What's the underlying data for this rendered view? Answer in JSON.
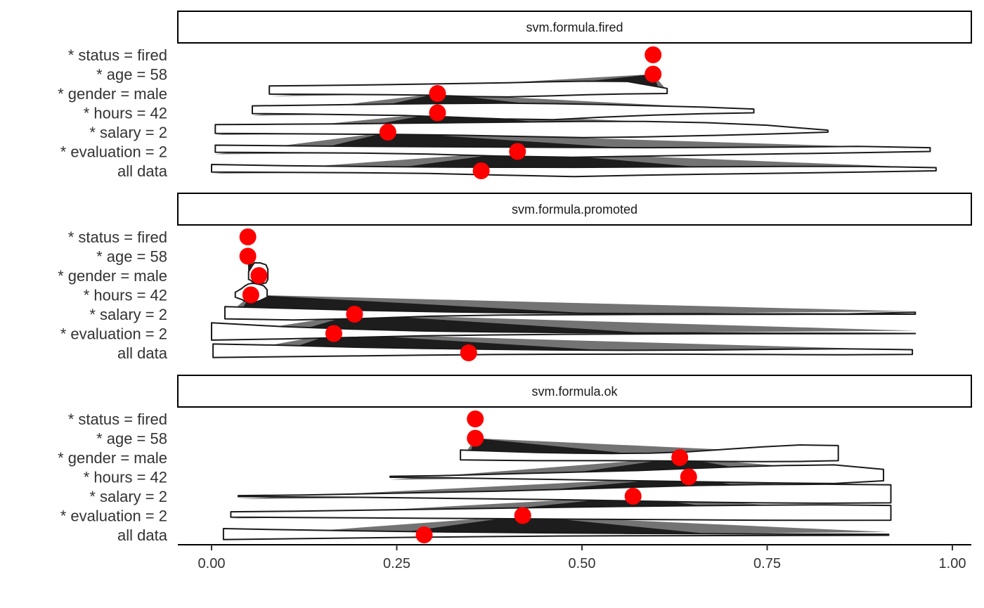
{
  "chart_data": {
    "type": "violin",
    "x_axis": {
      "range": [
        -0.045,
        1.03
      ],
      "ticks": [
        0.0,
        0.25,
        0.5,
        0.75,
        1.0
      ],
      "tick_labels": [
        "0.00",
        "0.25",
        "0.50",
        "0.75",
        "1.00"
      ],
      "label": ""
    },
    "rows": [
      "* status = fired",
      "* age = 58",
      "* gender = male",
      "* hours = 42",
      "* salary = 2",
      "* evaluation = 2",
      "all data"
    ],
    "point_color": "#ff0000",
    "panels": [
      {
        "title": "svm.formula.fired",
        "points": [
          0.596,
          0.596,
          0.305,
          0.305,
          0.238,
          0.413,
          0.364
        ],
        "violins": [
          {
            "row": "* gender = male",
            "min": 0.078,
            "max": 0.615,
            "top_shape": [
              0.6,
              0.63,
              0.66,
              0.7,
              0.75,
              0.8,
              0.85,
              0.92,
              0.97,
              0.95,
              0.4
            ],
            "bottom_shape": [
              0.08,
              0.1,
              0.13,
              0.15,
              0.22,
              0.38,
              0.45,
              0.32,
              0.15,
              0.05,
              0.0
            ]
          },
          {
            "row": "* hours = 42",
            "min": 0.055,
            "max": 0.732,
            "top_shape": [
              0.55,
              0.6,
              0.65,
              0.7,
              0.74,
              0.76,
              0.72,
              0.65,
              0.55,
              0.45,
              0.3
            ],
            "bottom_shape": [
              0.1,
              0.15,
              0.25,
              0.35,
              0.55,
              0.8,
              0.88,
              0.55,
              0.3,
              0.12,
              0.0
            ]
          },
          {
            "row": "* salary = 2",
            "min": 0.005,
            "max": 0.832,
            "top_shape": [
              0.6,
              0.62,
              0.65,
              0.7,
              0.75,
              0.8,
              0.85,
              0.85,
              0.75,
              0.55,
              0.15
            ],
            "bottom_shape": [
              0.15,
              0.2,
              0.25,
              0.3,
              0.4,
              0.55,
              0.7,
              0.62,
              0.45,
              0.25,
              0.0
            ]
          },
          {
            "row": "* evaluation = 2",
            "min": 0.005,
            "max": 0.97,
            "top_shape": [
              0.5,
              0.45,
              0.4,
              0.38,
              0.35,
              0.32,
              0.3,
              0.32,
              0.35,
              0.4,
              0.3
            ],
            "bottom_shape": [
              0.1,
              0.15,
              0.2,
              0.35,
              0.6,
              0.75,
              0.6,
              0.45,
              0.3,
              0.15,
              0.0
            ]
          },
          {
            "row": "all data",
            "min": 0.0,
            "max": 0.978,
            "top_shape": [
              0.5,
              0.4,
              0.35,
              0.3,
              0.28,
              0.27,
              0.3,
              0.32,
              0.35,
              0.35,
              0.25
            ],
            "bottom_shape": [
              0.15,
              0.2,
              0.25,
              0.35,
              0.55,
              0.75,
              0.55,
              0.42,
              0.3,
              0.15,
              0.0
            ]
          }
        ]
      },
      {
        "title": "svm.formula.promoted",
        "points": [
          0.049,
          0.049,
          0.064,
          0.053,
          0.193,
          0.165,
          0.347
        ],
        "violins": [
          {
            "row": "* gender = male",
            "min": 0.05,
            "max": 0.076,
            "top_shape": [
              0.3,
              0.55,
              0.8,
              1.0,
              1.0,
              1.0,
              1.0,
              0.95,
              0.9,
              0.85,
              0.5
            ],
            "bottom_shape": [
              0.5,
              0.6,
              0.8,
              1.0,
              1.0,
              1.0,
              1.0,
              1.0,
              1.0,
              0.95,
              0.5
            ]
          },
          {
            "row": "* hours = 42",
            "min": 0.032,
            "max": 0.075,
            "top_shape": [
              0.2,
              0.35,
              0.5,
              0.7,
              0.85,
              0.9,
              0.9,
              0.85,
              0.8,
              0.7,
              0.4
            ],
            "bottom_shape": [
              0.3,
              0.45,
              0.6,
              0.8,
              0.95,
              1.0,
              0.95,
              0.85,
              0.7,
              0.5,
              0.3
            ]
          },
          {
            "row": "* salary = 2",
            "min": 0.018,
            "max": 0.95,
            "top_shape": [
              0.6,
              0.45,
              0.3,
              0.2,
              0.12,
              0.08,
              0.05,
              0.04,
              0.03,
              0.02,
              0.15
            ],
            "bottom_shape": [
              0.6,
              0.75,
              0.55,
              0.25,
              0.12,
              0.06,
              0.04,
              0.02,
              0.02,
              0.01,
              0.0
            ]
          },
          {
            "row": "* evaluation = 2",
            "min": 0.0,
            "max": 0.95,
            "top_shape": [
              0.85,
              0.55,
              0.35,
              0.2,
              0.12,
              0.08,
              0.05,
              0.04,
              0.03,
              0.02,
              0.0
            ],
            "bottom_shape": [
              0.85,
              0.7,
              0.5,
              0.3,
              0.18,
              0.1,
              0.06,
              0.04,
              0.03,
              0.02,
              0.0
            ]
          },
          {
            "row": "all data",
            "min": 0.002,
            "max": 0.946,
            "top_shape": [
              0.7,
              0.6,
              0.45,
              0.35,
              0.28,
              0.22,
              0.2,
              0.22,
              0.28,
              0.32,
              0.25
            ],
            "bottom_shape": [
              0.6,
              0.5,
              0.4,
              0.3,
              0.22,
              0.18,
              0.16,
              0.18,
              0.22,
              0.25,
              0.2
            ]
          }
        ]
      },
      {
        "title": "svm.formula.ok",
        "points": [
          0.356,
          0.356,
          0.632,
          0.644,
          0.569,
          0.42,
          0.287
        ],
        "violins": [
          {
            "row": "* gender = male",
            "min": 0.336,
            "max": 0.846,
            "top_shape": [
              0.6,
              0.5,
              0.4,
              0.35,
              0.32,
              0.35,
              0.45,
              0.65,
              0.85,
              1.0,
              0.95
            ],
            "bottom_shape": [
              0.3,
              0.35,
              0.4,
              0.4,
              0.4,
              0.42,
              0.45,
              0.5,
              0.52,
              0.5,
              0.4
            ]
          },
          {
            "row": "* hours = 42",
            "min": 0.241,
            "max": 0.907,
            "top_shape": [
              0.05,
              0.1,
              0.2,
              0.3,
              0.4,
              0.5,
              0.65,
              0.8,
              0.9,
              0.95,
              0.6
            ],
            "bottom_shape": [
              0.05,
              0.1,
              0.2,
              0.3,
              0.4,
              0.5,
              0.6,
              0.7,
              0.8,
              0.85,
              0.5
            ]
          },
          {
            "row": "* salary = 2",
            "min": 0.036,
            "max": 0.917,
            "top_shape": [
              0.05,
              0.1,
              0.2,
              0.3,
              0.4,
              0.55,
              0.7,
              0.85,
              0.92,
              0.95,
              0.9
            ],
            "bottom_shape": [
              0.05,
              0.1,
              0.15,
              0.25,
              0.35,
              0.45,
              0.6,
              0.75,
              0.85,
              0.9,
              0.85
            ]
          },
          {
            "row": "* evaluation = 2",
            "min": 0.026,
            "max": 0.917,
            "top_shape": [
              0.3,
              0.35,
              0.42,
              0.5,
              0.58,
              0.65,
              0.72,
              0.78,
              0.82,
              0.85,
              0.8
            ],
            "bottom_shape": [
              0.2,
              0.25,
              0.3,
              0.35,
              0.4,
              0.45,
              0.5,
              0.55,
              0.6,
              0.62,
              0.6
            ]
          },
          {
            "row": "all data",
            "min": 0.016,
            "max": 0.914,
            "top_shape": [
              0.5,
              0.4,
              0.32,
              0.25,
              0.2,
              0.15,
              0.12,
              0.1,
              0.08,
              0.06,
              0.05
            ],
            "bottom_shape": [
              0.6,
              0.5,
              0.4,
              0.3,
              0.22,
              0.15,
              0.12,
              0.1,
              0.08,
              0.06,
              0.05
            ]
          }
        ]
      }
    ]
  }
}
